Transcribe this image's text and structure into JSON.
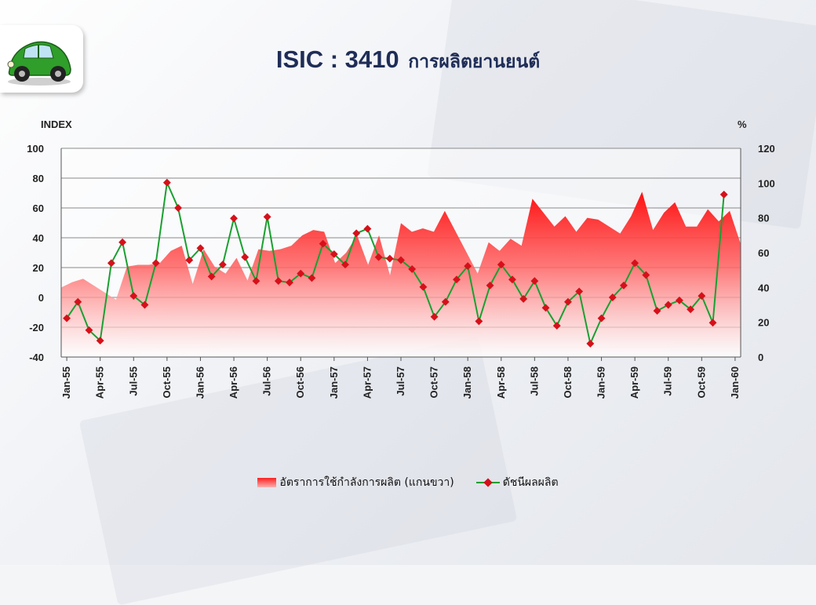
{
  "title": {
    "code": "ISIC : 3410",
    "thai": "การผลิตยานยนต์"
  },
  "logo": {
    "icon": "green-beetle-car-icon"
  },
  "chart_data": {
    "type": "line",
    "left_axis": {
      "label": "INDEX",
      "ylim": [
        -40,
        100
      ],
      "ticks": [
        -40,
        -20,
        0,
        20,
        40,
        60,
        80,
        100
      ]
    },
    "right_axis": {
      "label": "%",
      "ylim": [
        0,
        120
      ],
      "ticks": [
        0,
        20,
        40,
        60,
        80,
        100,
        120
      ]
    },
    "x_tick_labels": [
      "Jan-55",
      "Apr-55",
      "Jul-55",
      "Oct-55",
      "Jan-56",
      "Apr-56",
      "Jul-56",
      "Oct-56",
      "Jan-57",
      "Apr-57",
      "Jul-57",
      "Oct-57",
      "Jan-58",
      "Apr-58",
      "Jul-58",
      "Oct-58",
      "Jan-59",
      "Apr-59",
      "Jul-59",
      "Oct-59",
      "Jan-60"
    ],
    "grid": true,
    "legend_position": "bottom",
    "series": [
      {
        "name": "อัตราการใช้กำลังการผลิต (แกนขวา)",
        "type": "area",
        "axis": "right",
        "color": "#ff1a1a",
        "values": [
          40,
          43,
          45,
          41,
          37,
          33,
          52,
          53,
          53,
          54,
          61,
          64,
          42,
          62,
          52,
          48,
          57,
          44,
          62,
          61,
          62,
          64,
          70,
          73,
          72,
          54,
          60,
          70,
          53,
          70,
          47,
          77,
          72,
          74,
          72,
          84,
          72,
          60,
          48,
          66,
          61,
          68,
          64,
          91,
          83,
          75,
          81,
          72,
          80,
          79,
          75,
          71,
          81,
          95,
          73,
          83,
          89,
          75,
          75,
          85,
          78,
          84,
          65
        ]
      },
      {
        "name": "ดัชนีผลผลิต",
        "type": "line",
        "axis": "left",
        "color": "#1aa031",
        "marker_color": "#d6101a",
        "values": [
          -14,
          -3,
          -22,
          -29,
          23,
          37,
          1,
          -5,
          23,
          77,
          60,
          25,
          33,
          14,
          22,
          53,
          27,
          11,
          54,
          11,
          10,
          16,
          13,
          36,
          29,
          22,
          43,
          46,
          27,
          26,
          25,
          19,
          7,
          -13,
          -3,
          12,
          21,
          -16,
          8,
          22,
          12,
          -1,
          11,
          -7,
          -19,
          -3,
          4,
          -31,
          -14,
          0,
          8,
          23,
          15,
          -9,
          -5,
          -2,
          -8,
          1,
          -17,
          69
        ]
      }
    ]
  }
}
